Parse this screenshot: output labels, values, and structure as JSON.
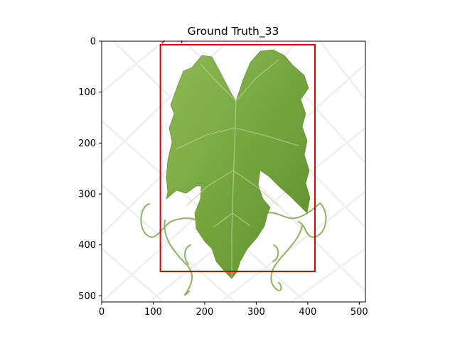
{
  "title": "Ground Truth_33",
  "image": {
    "subject": "grape leaf with tendrils",
    "background": "#ffffff",
    "leaf_color": "#7fa84a",
    "tendril_color": "#8db463"
  },
  "axes": {
    "x_range": [
      0,
      512
    ],
    "y_range": [
      512,
      0
    ],
    "x_ticks": [
      0,
      100,
      200,
      300,
      400,
      500
    ],
    "y_ticks": [
      0,
      100,
      200,
      300,
      400,
      500
    ],
    "x_tick_labels": [
      "0",
      "100",
      "200",
      "300",
      "400",
      "500"
    ],
    "y_tick_labels": [
      "0",
      "100",
      "200",
      "300",
      "400",
      "500"
    ]
  },
  "bounding_box": {
    "label": "",
    "color": "#e00000",
    "x_min": 114,
    "y_min": 7,
    "x_max": 414,
    "y_max": 452
  }
}
